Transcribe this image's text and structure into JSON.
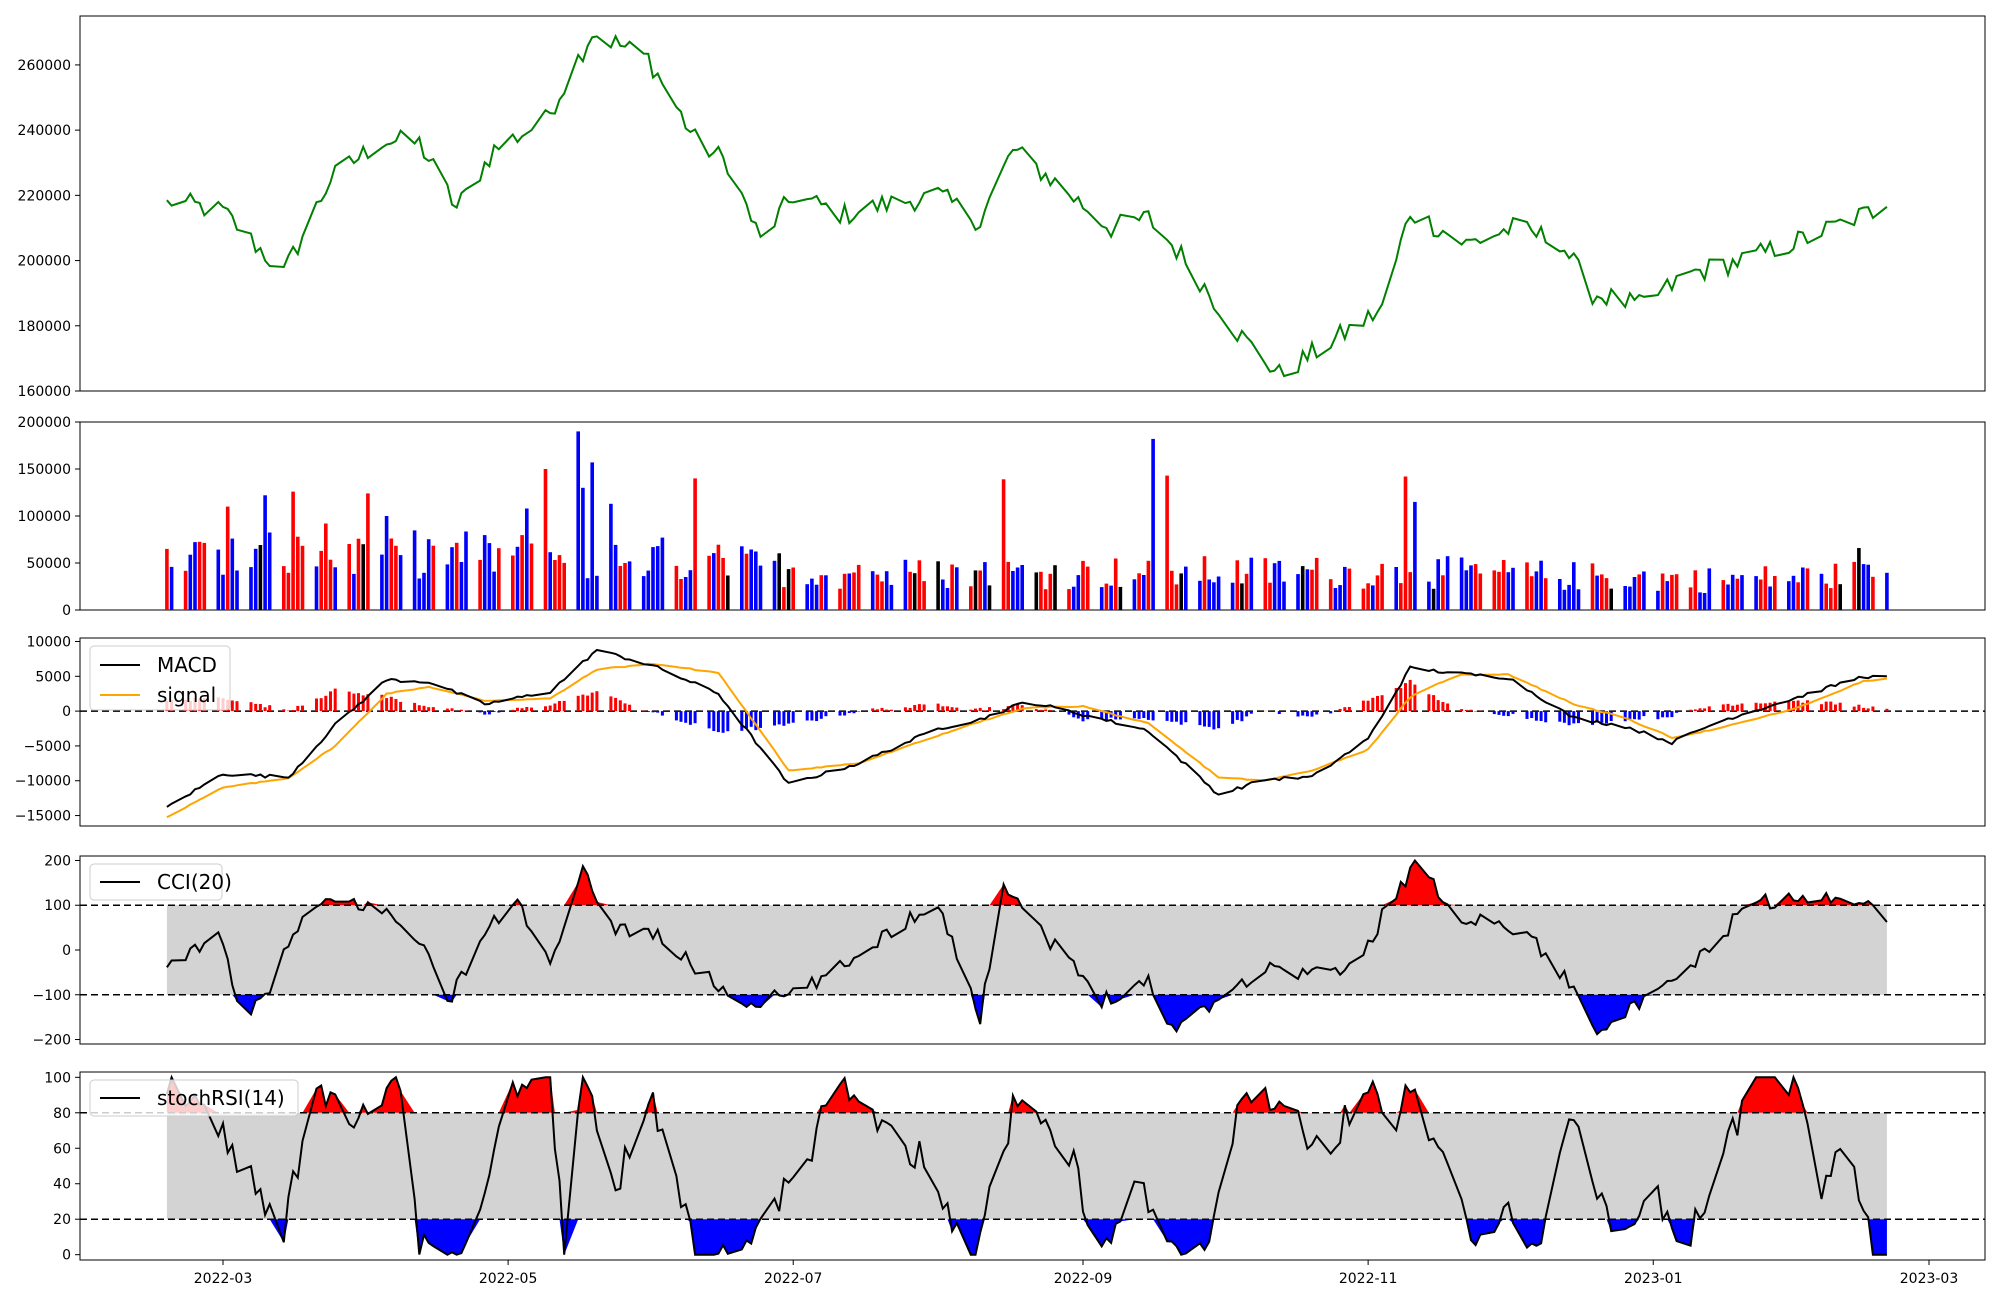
{
  "chart_data": [
    {
      "panel": "price",
      "type": "line",
      "color": "#008000",
      "ylim": [
        160000,
        275000
      ],
      "yticks": [
        160000,
        180000,
        200000,
        220000,
        240000,
        260000
      ],
      "ytick_labels": [
        "160000",
        "180000",
        "200000",
        "220000",
        "240000",
        "260000"
      ],
      "x": [
        "2022-02-17",
        "2022-03-01",
        "2022-03-14",
        "2022-03-24",
        "2022-04-04",
        "2022-04-12",
        "2022-04-20",
        "2022-04-28",
        "2022-05-09",
        "2022-05-19",
        "2022-05-31",
        "2022-06-10",
        "2022-06-17",
        "2022-06-24",
        "2022-07-01",
        "2022-07-12",
        "2022-07-20",
        "2022-08-01",
        "2022-08-10",
        "2022-08-17",
        "2022-08-26",
        "2022-09-07",
        "2022-09-15",
        "2022-09-23",
        "2022-10-04",
        "2022-10-13",
        "2022-10-24",
        "2022-11-04",
        "2022-11-10",
        "2022-11-22",
        "2022-12-02",
        "2022-12-12",
        "2022-12-19",
        "2022-12-29",
        "2023-01-09",
        "2023-01-20",
        "2023-02-03",
        "2023-02-13",
        "2023-02-20"
      ],
      "values": [
        218500,
        215000,
        196000,
        225000,
        237000,
        236000,
        216000,
        234000,
        243000,
        270000,
        262000,
        237000,
        230000,
        206000,
        220000,
        214000,
        217000,
        220000,
        212000,
        234000,
        224000,
        210000,
        213000,
        200000,
        178000,
        165000,
        175000,
        185000,
        215000,
        205000,
        210000,
        206000,
        190000,
        186000,
        196000,
        200000,
        207000,
        213000,
        216500
      ]
    },
    {
      "panel": "volume",
      "type": "bar",
      "ylim": [
        0,
        200000
      ],
      "yticks": [
        0,
        50000,
        100000,
        150000,
        200000
      ],
      "ytick_labels": [
        "0",
        "50000",
        "100000",
        "150000",
        "200000"
      ],
      "x": [
        "2022-02-17",
        "2022-03-02",
        "2022-03-10",
        "2022-03-16",
        "2022-03-23",
        "2022-04-01",
        "2022-04-05",
        "2022-05-05",
        "2022-05-09",
        "2022-05-16",
        "2022-05-17",
        "2022-05-19",
        "2022-05-23",
        "2022-06-10",
        "2022-07-15",
        "2022-08-15",
        "2022-09-16",
        "2022-09-19",
        "2022-11-09",
        "2022-11-11",
        "2023-02-14"
      ],
      "values": [
        65000,
        110000,
        122000,
        126000,
        92000,
        124000,
        100000,
        108000,
        150000,
        190000,
        130000,
        157000,
        113000,
        140000,
        48000,
        139000,
        182000,
        143000,
        142000,
        115000,
        66000
      ]
    },
    {
      "panel": "macd",
      "type": "line",
      "legend": [
        "MACD",
        "signal"
      ],
      "colors": {
        "macd": "#000000",
        "signal": "#ffa500",
        "hist_pos": "#ff0000",
        "hist_neg": "#0000ff"
      },
      "ylim": [
        -16500,
        10500
      ],
      "yticks": [
        -15000,
        -10000,
        -5000,
        0,
        5000,
        10000
      ],
      "ytick_labels": [
        "−15000",
        "−10000",
        "−5000",
        "0",
        "5000",
        "10000"
      ],
      "x": [
        "2022-02-17",
        "2022-03-01",
        "2022-03-15",
        "2022-03-25",
        "2022-04-05",
        "2022-04-14",
        "2022-04-26",
        "2022-05-10",
        "2022-05-20",
        "2022-06-01",
        "2022-06-15",
        "2022-06-30",
        "2022-07-15",
        "2022-08-01",
        "2022-08-10",
        "2022-08-20",
        "2022-09-01",
        "2022-09-15",
        "2022-09-30",
        "2022-10-10",
        "2022-10-20",
        "2022-11-01",
        "2022-11-10",
        "2022-11-20",
        "2022-12-01",
        "2022-12-15",
        "2022-12-26",
        "2023-01-05",
        "2023-01-15",
        "2023-02-01",
        "2023-02-15",
        "2023-02-20"
      ],
      "macd": [
        -13800,
        -9000,
        -9500,
        -2000,
        4500,
        4200,
        1000,
        2800,
        8800,
        6500,
        2500,
        -10500,
        -7500,
        -2500,
        -1200,
        1400,
        -500,
        -2800,
        -12000,
        -9800,
        -9500,
        -4000,
        6200,
        5400,
        4800,
        -1000,
        -2200,
        -4500,
        -1500,
        2000,
        5000,
        4800
      ],
      "signal": [
        -15200,
        -11000,
        -9600,
        -5000,
        2500,
        3500,
        1500,
        1800,
        6000,
        6800,
        5500,
        -8500,
        -7500,
        -3500,
        -1500,
        500,
        700,
        -1800,
        -9500,
        -10000,
        -8500,
        -5500,
        2000,
        5200,
        5300,
        1000,
        -1000,
        -3800,
        -2500,
        500,
        4300,
        4600
      ]
    },
    {
      "panel": "cci",
      "type": "line",
      "legend": [
        "CCI(20)"
      ],
      "colors": {
        "line": "#000000",
        "above": "#ff0000",
        "below": "#0000ff",
        "band": "#d3d3d3"
      },
      "ylim": [
        -210,
        210
      ],
      "thresholds": [
        100,
        -100
      ],
      "yticks": [
        -200,
        -100,
        0,
        100,
        200
      ],
      "ytick_labels": [
        "−200",
        "−100",
        "0",
        "100",
        "200"
      ],
      "x": [
        "2022-02-17",
        "2022-02-28",
        "2022-03-05",
        "2022-03-10",
        "2022-03-18",
        "2022-03-25",
        "2022-04-03",
        "2022-04-12",
        "2022-04-18",
        "2022-04-26",
        "2022-05-03",
        "2022-05-10",
        "2022-05-17",
        "2022-05-24",
        "2022-06-01",
        "2022-06-10",
        "2022-06-20",
        "2022-07-01",
        "2022-07-10",
        "2022-07-20",
        "2022-08-01",
        "2022-08-10",
        "2022-08-15",
        "2022-08-25",
        "2022-09-05",
        "2022-09-15",
        "2022-09-20",
        "2022-09-28",
        "2022-10-10",
        "2022-10-20",
        "2022-10-30",
        "2022-11-05",
        "2022-11-11",
        "2022-11-20",
        "2022-12-05",
        "2022-12-15",
        "2022-12-20",
        "2023-01-01",
        "2023-01-12",
        "2023-01-22",
        "2023-02-05",
        "2023-02-15",
        "2023-02-20"
      ],
      "values": [
        -50,
        50,
        -170,
        -100,
        70,
        110,
        95,
        30,
        -120,
        40,
        110,
        -40,
        170,
        50,
        40,
        -40,
        -120,
        -100,
        -50,
        30,
        110,
        -155,
        155,
        20,
        -110,
        -70,
        -175,
        -120,
        -40,
        -50,
        -40,
        100,
        190,
        80,
        40,
        -90,
        -170,
        -110,
        -10,
        110,
        110,
        120,
        55
      ]
    },
    {
      "panel": "stochrsi",
      "type": "line",
      "legend": [
        "stochRSI(14)"
      ],
      "colors": {
        "line": "#000000",
        "above": "#ff0000",
        "below": "#0000ff",
        "band": "#d3d3d3"
      },
      "ylim": [
        -3,
        103
      ],
      "thresholds": [
        80,
        20
      ],
      "yticks": [
        0,
        20,
        40,
        60,
        80,
        100
      ],
      "ytick_labels": [
        "0",
        "20",
        "40",
        "60",
        "80",
        "100"
      ],
      "x": [
        "2022-02-17",
        "2022-03-01",
        "2022-03-14",
        "2022-03-20",
        "2022-03-28",
        "2022-04-08",
        "2022-04-12",
        "2022-04-18",
        "2022-04-25",
        "2022-05-01",
        "2022-05-10",
        "2022-05-13",
        "2022-05-17",
        "2022-05-24",
        "2022-06-01",
        "2022-06-10",
        "2022-06-20",
        "2022-06-28",
        "2022-07-05",
        "2022-07-10",
        "2022-07-20",
        "2022-07-30",
        "2022-08-08",
        "2022-08-18",
        "2022-08-30",
        "2022-09-05",
        "2022-09-12",
        "2022-09-22",
        "2022-09-28",
        "2022-10-05",
        "2022-10-12",
        "2022-10-22",
        "2022-11-01",
        "2022-11-06",
        "2022-11-10",
        "2022-11-18",
        "2022-11-25",
        "2022-12-01",
        "2022-12-08",
        "2022-12-15",
        "2022-12-25",
        "2023-01-01",
        "2023-01-06",
        "2023-01-13",
        "2023-01-22",
        "2023-01-31",
        "2023-02-06",
        "2023-02-12",
        "2023-02-17",
        "2023-02-20"
      ],
      "values": [
        100,
        70,
        10,
        95,
        75,
        100,
        10,
        0,
        20,
        90,
        100,
        0,
        100,
        40,
        85,
        0,
        0,
        30,
        60,
        100,
        75,
        50,
        0,
        90,
        50,
        0,
        40,
        0,
        15,
        90,
        90,
        55,
        100,
        60,
        100,
        45,
        5,
        20,
        5,
        80,
        0,
        40,
        0,
        30,
        100,
        100,
        40,
        60,
        0,
        0
      ]
    }
  ],
  "x_axis": {
    "ticks": [
      "2022-03",
      "2022-05",
      "2022-07",
      "2022-09",
      "2022-11",
      "2023-01",
      "2023-03"
    ]
  }
}
